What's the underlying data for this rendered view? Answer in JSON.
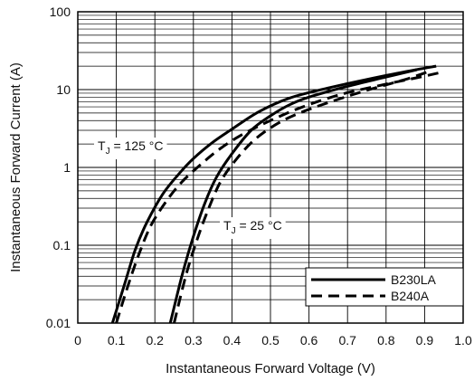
{
  "chart_data": {
    "type": "line",
    "xlabel": "Instantaneous Forward Voltage (V)",
    "ylabel": "Instantaneous Forward Current (A)",
    "xlim": [
      0,
      1.0
    ],
    "ylim": [
      0.01,
      100
    ],
    "yscale": "log",
    "grid": true,
    "x_ticks": [
      "0",
      "0.1",
      "0.2",
      "0.3",
      "0.4",
      "0.5",
      "0.6",
      "0.7",
      "0.8",
      "0.9",
      "1.0"
    ],
    "y_ticks": [
      "0.01",
      "0.1",
      "1",
      "10",
      "100"
    ],
    "legend": {
      "position": "bottom-right"
    },
    "annotations": [
      {
        "main": "T",
        "sub": "J",
        "rest": " = 125 °C"
      },
      {
        "main": "T",
        "sub": "J",
        "rest": " = 25 °C"
      }
    ],
    "series": [
      {
        "name": "B230LA",
        "style": "solid",
        "color": "#000000",
        "curves": [
          {
            "x": [
              0.09,
              0.12,
              0.15,
              0.18,
              0.22,
              0.26,
              0.3,
              0.35,
              0.4,
              0.47,
              0.55,
              0.65,
              0.75,
              0.85,
              0.93
            ],
            "y": [
              0.01,
              0.03,
              0.09,
              0.2,
              0.45,
              0.8,
              1.3,
              2.1,
              3.1,
              5.2,
              7.8,
              10.5,
              13.5,
              17,
              20
            ]
          },
          {
            "x": [
              0.24,
              0.27,
              0.3,
              0.33,
              0.36,
              0.4,
              0.45,
              0.5,
              0.55,
              0.6,
              0.7,
              0.8,
              0.88
            ],
            "y": [
              0.01,
              0.04,
              0.13,
              0.35,
              0.75,
              1.5,
              3.0,
              4.6,
              6.4,
              8.0,
              11,
              14.5,
              18
            ]
          }
        ]
      },
      {
        "name": "B240A",
        "style": "dashed",
        "color": "#000000",
        "curves": [
          {
            "x": [
              0.1,
              0.13,
              0.16,
              0.19,
              0.23,
              0.27,
              0.32,
              0.37,
              0.43,
              0.5,
              0.58,
              0.68,
              0.78,
              0.88,
              0.94
            ],
            "y": [
              0.01,
              0.03,
              0.08,
              0.18,
              0.37,
              0.65,
              1.1,
              1.75,
              2.7,
              4.0,
              5.9,
              8.6,
              11.2,
              14.2,
              16.5
            ]
          },
          {
            "x": [
              0.25,
              0.28,
              0.31,
              0.34,
              0.37,
              0.41,
              0.46,
              0.52,
              0.58,
              0.65,
              0.75,
              0.85,
              0.91
            ],
            "y": [
              0.01,
              0.04,
              0.12,
              0.3,
              0.65,
              1.25,
              2.3,
              3.7,
              5.1,
              6.8,
              9.8,
              13.5,
              17
            ]
          }
        ]
      }
    ]
  }
}
